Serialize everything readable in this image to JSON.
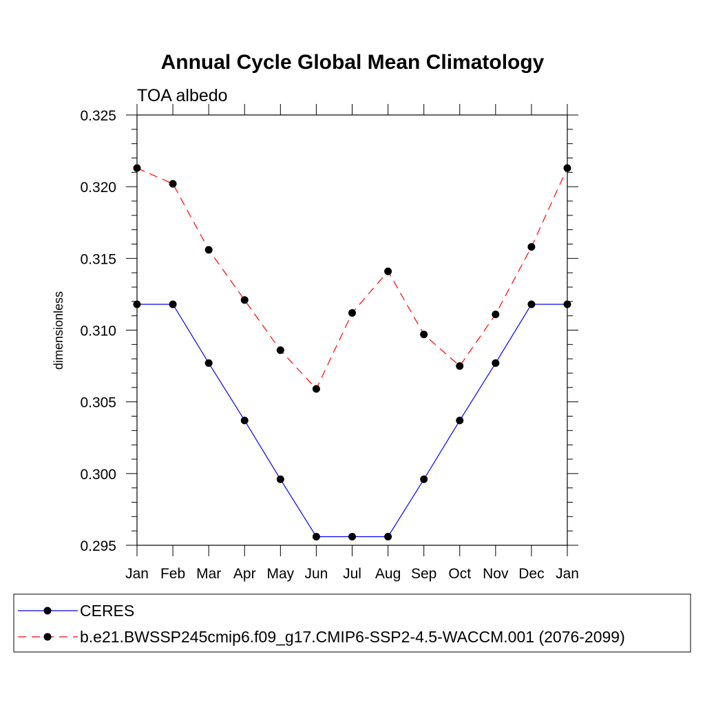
{
  "chart_data": {
    "type": "line",
    "title": "Annual Cycle Global Mean Climatology",
    "subtitle": "TOA albedo",
    "xlabel": "",
    "ylabel": "dimensionless",
    "categories": [
      "Jan",
      "Feb",
      "Mar",
      "Apr",
      "May",
      "Jun",
      "Jul",
      "Aug",
      "Sep",
      "Oct",
      "Nov",
      "Dec",
      "Jan"
    ],
    "ylim": [
      0.295,
      0.325
    ],
    "yticks": [
      "0.295",
      "0.300",
      "0.305",
      "0.310",
      "0.315",
      "0.320",
      "0.325"
    ],
    "grid": false,
    "legend_position": "bottom",
    "series": [
      {
        "name": "CERES",
        "color": "#0000ff",
        "style": "solid",
        "values": [
          0.3118,
          0.3118,
          0.3077,
          0.3037,
          0.2996,
          0.2956,
          0.2956,
          0.2956,
          0.2996,
          0.3037,
          0.3077,
          0.3118,
          0.3118
        ]
      },
      {
        "name": "b.e21.BWSSP245cmip6.f09_g17.CMIP6-SSP2-4.5-WACCM.001 (2076-2099)",
        "color": "#ff0000",
        "style": "dashed",
        "values": [
          0.3213,
          0.3202,
          0.3156,
          0.3121,
          0.3086,
          0.3059,
          0.3112,
          0.3141,
          0.3097,
          0.3075,
          0.3111,
          0.3158,
          0.3213
        ]
      }
    ]
  }
}
